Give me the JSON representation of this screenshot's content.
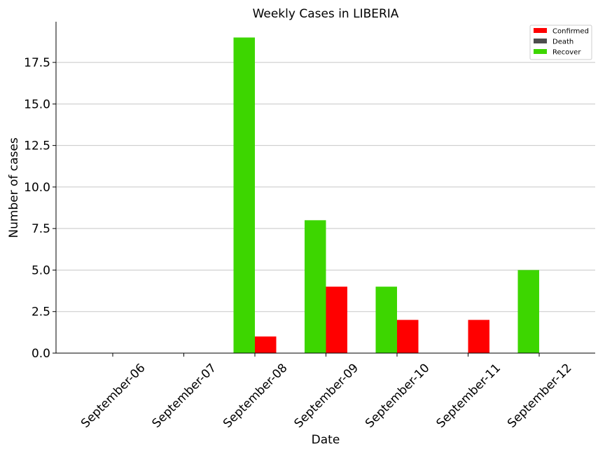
{
  "chart_data": {
    "type": "bar",
    "title": "Weekly Cases in LIBERIA",
    "xlabel": "Date",
    "ylabel": "Number of cases",
    "categories": [
      "September-06",
      "September-07",
      "September-08",
      "September-09",
      "September-10",
      "September-11",
      "September-12"
    ],
    "series": [
      {
        "name": "Confirmed",
        "color": "#ff0000",
        "values": [
          0,
          0,
          1,
          4,
          2,
          2,
          0
        ]
      },
      {
        "name": "Death",
        "color": "#4d4d4d",
        "values": [
          0,
          0,
          0,
          0,
          0,
          0,
          0
        ]
      },
      {
        "name": "Recover",
        "color": "#3dd600",
        "values": [
          0,
          0,
          19,
          8,
          4,
          0,
          5
        ]
      }
    ],
    "ylim": [
      0,
      19.95
    ],
    "yticks": [
      "0.0",
      "2.5",
      "5.0",
      "7.5",
      "10.0",
      "12.5",
      "15.0",
      "17.5"
    ],
    "grid": "horizontal",
    "legend": "top-right"
  }
}
